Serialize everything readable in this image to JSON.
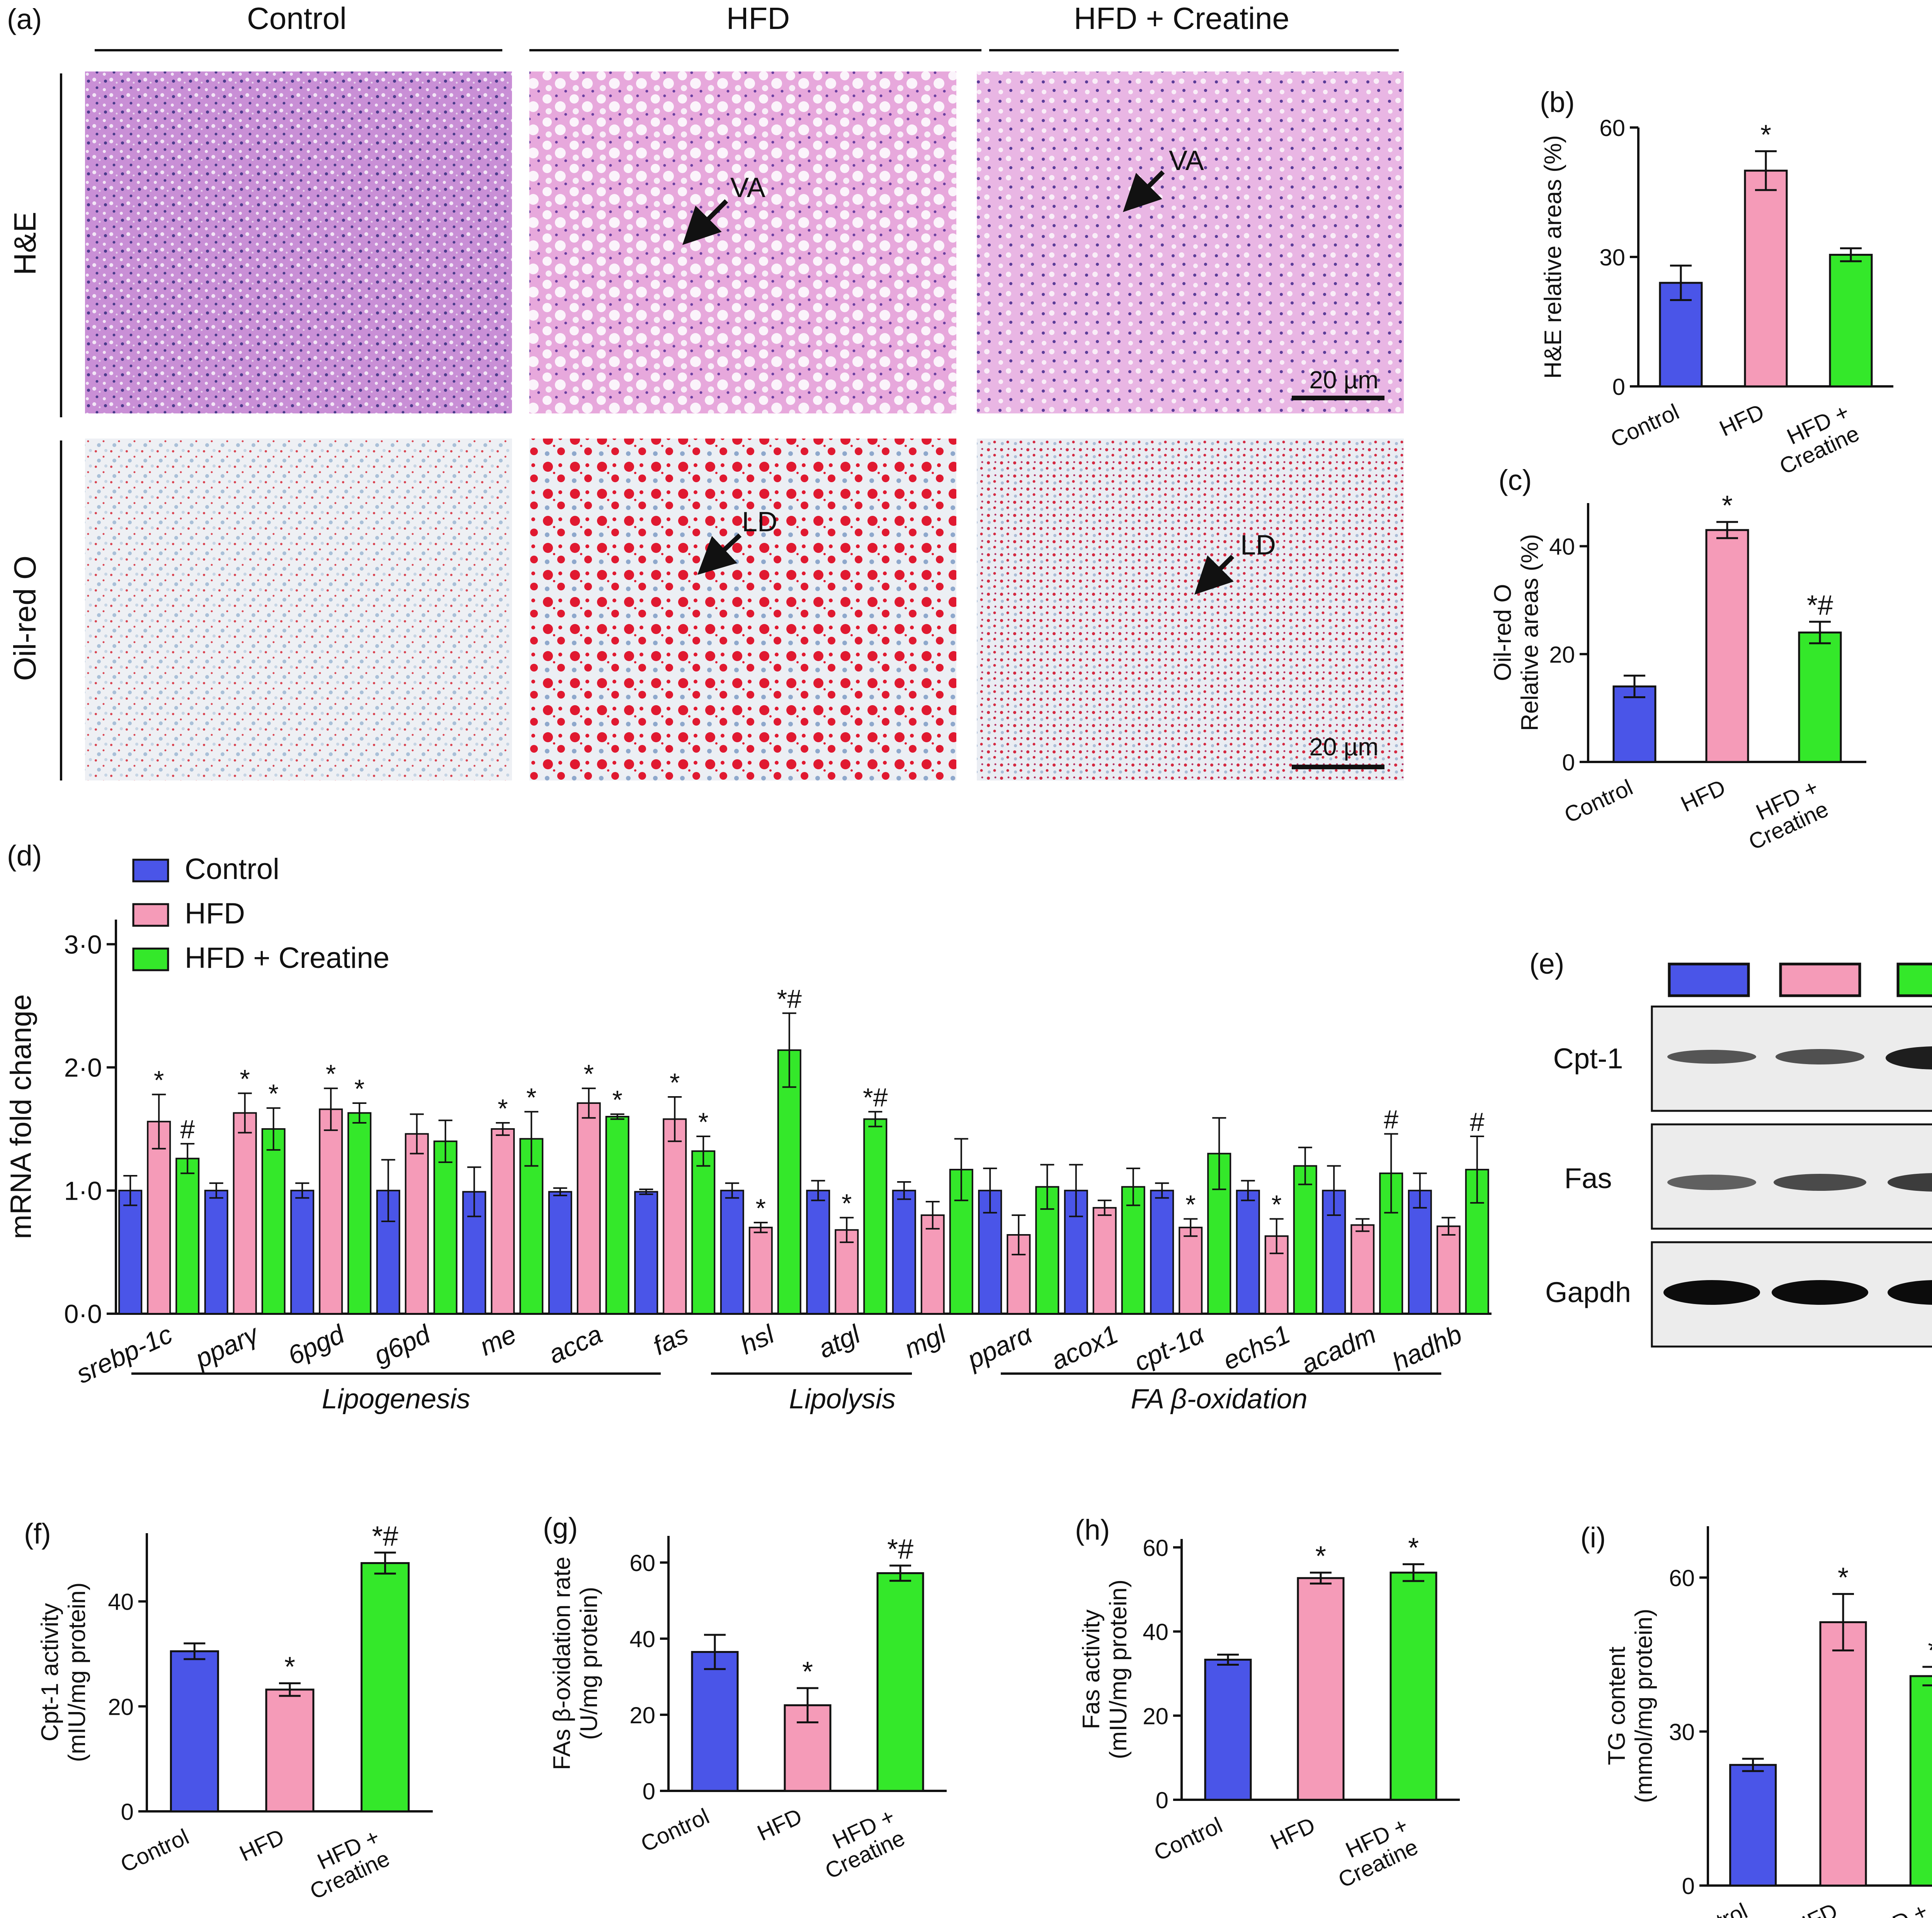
{
  "group_colors": [
    "#4a55e8",
    "#f59bb8",
    "#34e82a"
  ],
  "panel_a": {
    "label": "(a)",
    "columns": [
      "Control",
      "HFD",
      "HFD + Creatine"
    ],
    "rows": [
      "H&E",
      "Oil-red O"
    ],
    "arrow_labels": [
      "VA",
      "VA",
      "LD",
      "LD"
    ],
    "scale_bar": "20 µm"
  },
  "panel_e": {
    "label": "(e)",
    "bands": [
      "Cpt-1",
      "Fas",
      "Gapdh"
    ]
  },
  "gene_groups": [
    "Lipogenesis",
    "Lipolysis",
    "FA β-oxidation"
  ],
  "chart_data": [
    {
      "id": "b",
      "label": "(b)",
      "type": "bar",
      "ylabel": "H&E relative areas (%)",
      "categories": [
        "Control",
        "HFD",
        "HFD + Creatine"
      ],
      "values": [
        24,
        50,
        30.5
      ],
      "errors": [
        4,
        4.5,
        1.5
      ],
      "annotations": [
        "",
        "*",
        ""
      ],
      "ylim": [
        0,
        60
      ],
      "yticks": [
        "0",
        "30",
        "60"
      ]
    },
    {
      "id": "c",
      "label": "(c)",
      "type": "bar",
      "ylabel": [
        "Oil-red O",
        "Relative areas (%)"
      ],
      "categories": [
        "Control",
        "HFD",
        "HFD + Creatine"
      ],
      "values": [
        14,
        43,
        24
      ],
      "errors": [
        2,
        1.5,
        2
      ],
      "annotations": [
        "",
        "*",
        "*#"
      ],
      "ylim": [
        0,
        48
      ],
      "yticks": [
        "0",
        "20",
        "40"
      ]
    },
    {
      "id": "d",
      "label": "(d)",
      "type": "bar",
      "ylabel": "mRNA fold change",
      "series": [
        {
          "name": "Control",
          "values": [
            1.0,
            1.0,
            1.0,
            1.0,
            0.99,
            0.99,
            0.99,
            1.0,
            1.0,
            1.0,
            1.0,
            1.0,
            1.0,
            1.0,
            1.0,
            1.0
          ],
          "errors": [
            0.12,
            0.06,
            0.06,
            0.25,
            0.2,
            0.03,
            0.02,
            0.06,
            0.08,
            0.07,
            0.18,
            0.21,
            0.06,
            0.08,
            0.2,
            0.14
          ]
        },
        {
          "name": "HFD",
          "values": [
            1.56,
            1.63,
            1.66,
            1.46,
            1.5,
            1.71,
            1.58,
            0.7,
            0.68,
            0.8,
            0.64,
            0.86,
            0.7,
            0.63,
            0.72,
            0.71
          ],
          "errors": [
            0.22,
            0.16,
            0.17,
            0.16,
            0.05,
            0.12,
            0.18,
            0.04,
            0.1,
            0.11,
            0.16,
            0.06,
            0.07,
            0.14,
            0.05,
            0.07
          ]
        },
        {
          "name": "HFD + Creatine",
          "values": [
            1.26,
            1.5,
            1.63,
            1.4,
            1.42,
            1.6,
            1.32,
            2.14,
            1.58,
            1.17,
            1.03,
            1.03,
            1.3,
            1.2,
            1.14,
            1.17
          ],
          "errors": [
            0.12,
            0.17,
            0.08,
            0.17,
            0.22,
            0.02,
            0.12,
            0.3,
            0.06,
            0.25,
            0.18,
            0.15,
            0.29,
            0.15,
            0.32,
            0.27
          ]
        }
      ],
      "categories": [
        "srebp-1c",
        "pparγ",
        "6pgd",
        "g6pd",
        "me",
        "acca",
        "fas",
        "hsl",
        "atgl",
        "mgl",
        "pparα",
        "acox1",
        "cpt-1α",
        "echs1",
        "acadm",
        "hadhb"
      ],
      "annotations_hfd": [
        "*",
        "*",
        "*",
        "",
        "*",
        "*",
        "*",
        "*",
        "*",
        "",
        "",
        "",
        "*",
        "*",
        "",
        ""
      ],
      "annotations_creatine": [
        "#",
        "*",
        "*",
        "",
        "*",
        "*",
        "*",
        "*#",
        "*#",
        "",
        "",
        "",
        "",
        "",
        "#",
        "#"
      ],
      "ylim": [
        0,
        3.2
      ],
      "yticks": [
        "0·0",
        "1·0",
        "2·0",
        "3·0"
      ],
      "legend": "top-left"
    },
    {
      "id": "f",
      "label": "(f)",
      "type": "bar",
      "ylabel": [
        "Cpt-1 activity",
        "(mIU/mg protein)"
      ],
      "categories": [
        "Control",
        "HFD",
        "HFD + Creatine"
      ],
      "values": [
        30.5,
        23.2,
        47.3
      ],
      "errors": [
        1.5,
        1.2,
        2
      ],
      "annotations": [
        "",
        "*",
        "*#"
      ],
      "ylim": [
        0,
        53
      ],
      "yticks": [
        "0",
        "20",
        "40"
      ]
    },
    {
      "id": "g",
      "label": "(g)",
      "type": "bar",
      "ylabel": [
        "FAs β-oxidation rate",
        "(U/mg protein)"
      ],
      "categories": [
        "Control",
        "HFD",
        "HFD + Creatine"
      ],
      "values": [
        36.5,
        22.5,
        57.2
      ],
      "errors": [
        4.5,
        4.5,
        2
      ],
      "annotations": [
        "",
        "*",
        "*#"
      ],
      "ylim": [
        0,
        67
      ],
      "yticks": [
        "0",
        "20",
        "40",
        "60"
      ]
    },
    {
      "id": "h",
      "label": "(h)",
      "type": "bar",
      "ylabel": [
        "Fas activity",
        "(mIU/mg protein)"
      ],
      "categories": [
        "Control",
        "HFD",
        "HFD + Creatine"
      ],
      "values": [
        33.3,
        52.7,
        54
      ],
      "errors": [
        1.2,
        1.3,
        2
      ],
      "annotations": [
        "",
        "*",
        "*"
      ],
      "ylim": [
        0,
        62
      ],
      "yticks": [
        "0",
        "20",
        "40",
        "60"
      ]
    },
    {
      "id": "i",
      "label": "(i)",
      "type": "bar",
      "ylabel": [
        "TG content",
        "(mmol/mg protein)"
      ],
      "categories": [
        "Control",
        "HFD",
        "HFD + Creatine"
      ],
      "values": [
        23.5,
        51.3,
        40.8
      ],
      "errors": [
        1.2,
        5.5,
        1.8
      ],
      "annotations": [
        "",
        "*",
        "*"
      ],
      "ylim": [
        0,
        70
      ],
      "yticks": [
        "0",
        "30",
        "60"
      ]
    }
  ]
}
